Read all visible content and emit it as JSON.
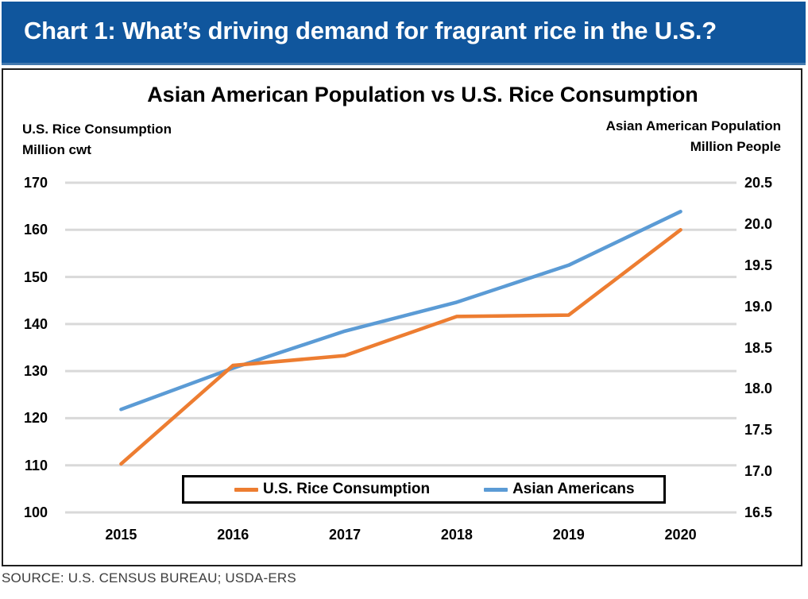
{
  "banner": {
    "title": "Chart 1: What’s driving demand for fragrant rice in the U.S.?",
    "bg_color": "#10569D"
  },
  "source": "SOURCE: U.S. CENSUS BUREAU; USDA-ERS",
  "chart_data": {
    "type": "line",
    "title": "Asian American Population vs U.S. Rice Consumption",
    "grid": true,
    "gridline_color": "#D9D9D9",
    "legend_position": "bottom",
    "categories": [
      "2015",
      "2016",
      "2017",
      "2018",
      "2019",
      "2020"
    ],
    "left_axis": {
      "title_line1": "U.S. Rice Consumption",
      "title_line2": "Million cwt",
      "min": 100,
      "max": 170,
      "step": 10,
      "ticks": [
        "100",
        "110",
        "120",
        "130",
        "140",
        "150",
        "160",
        "170"
      ]
    },
    "right_axis": {
      "title_line1": "Asian American Population",
      "title_line2": "Million People",
      "min": 16.5,
      "max": 20.5,
      "step": 0.5,
      "ticks": [
        "16.5",
        "17.0",
        "17.5",
        "18.0",
        "18.5",
        "19.0",
        "19.5",
        "20.0",
        "20.5"
      ]
    },
    "series": [
      {
        "name": "U.S. Rice Consumption",
        "axis": "left",
        "color": "#ED7D31",
        "values": [
          110.3,
          131.2,
          133.3,
          141.6,
          141.9,
          160.0
        ]
      },
      {
        "name": "Asian Americans",
        "axis": "right",
        "color": "#5B9BD5",
        "values": [
          17.75,
          18.25,
          18.7,
          19.05,
          19.5,
          20.15
        ]
      }
    ]
  }
}
